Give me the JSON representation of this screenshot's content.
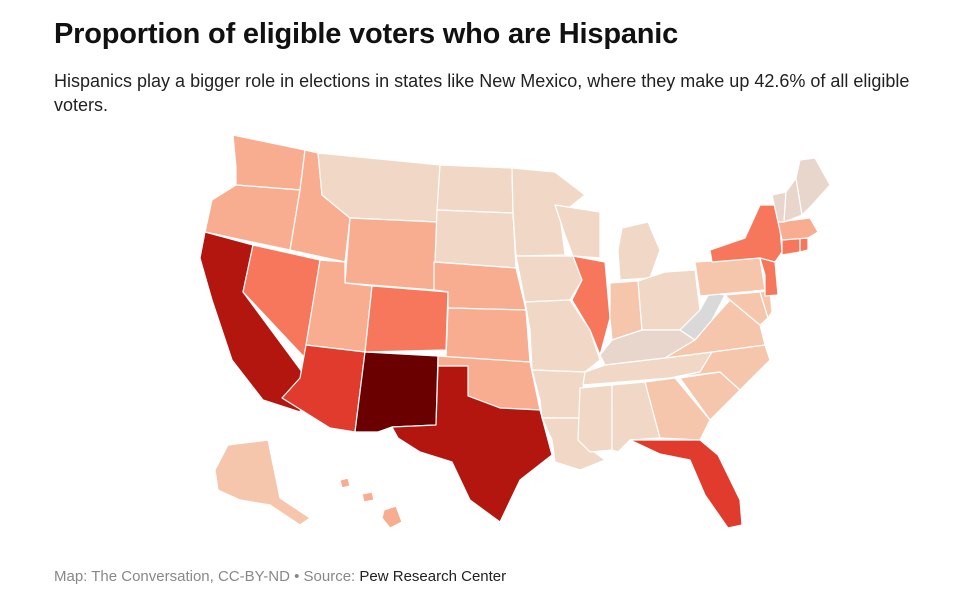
{
  "title": "Proportion of eligible voters who are Hispanic",
  "subtitle": "Hispanics play a bigger role in elections in states like New Mexico, where they make up 42.6% of all eligible voters.",
  "footer": {
    "credit": "Map: The Conversation, CC-BY-ND",
    "separator": " • ",
    "source_label": "Source: ",
    "source_name": "Pew Research Center"
  },
  "colors": {
    "very_high": "#6b0000",
    "high": "#b3150f",
    "upper_mid": "#e03b2c",
    "mid": "#f7775c",
    "lower_mid": "#f9ad90",
    "low": "#f5c6ab",
    "very_low": "#f1d8c6",
    "minimal": "#e8d6cc",
    "lowest": "#d9d9d9"
  },
  "states": [
    {
      "id": "NM",
      "level": "very_high"
    },
    {
      "id": "CA",
      "level": "high"
    },
    {
      "id": "TX",
      "level": "high"
    },
    {
      "id": "AZ",
      "level": "upper_mid"
    },
    {
      "id": "FL",
      "level": "upper_mid"
    },
    {
      "id": "NV",
      "level": "mid"
    },
    {
      "id": "CO",
      "level": "mid"
    },
    {
      "id": "NJ",
      "level": "mid"
    },
    {
      "id": "NY",
      "level": "mid"
    },
    {
      "id": "IL",
      "level": "mid"
    },
    {
      "id": "CT",
      "level": "mid"
    },
    {
      "id": "RI",
      "level": "mid"
    },
    {
      "id": "MA",
      "level": "lower_mid"
    },
    {
      "id": "WA",
      "level": "lower_mid"
    },
    {
      "id": "OR",
      "level": "lower_mid"
    },
    {
      "id": "ID",
      "level": "lower_mid"
    },
    {
      "id": "UT",
      "level": "lower_mid"
    },
    {
      "id": "WY",
      "level": "lower_mid"
    },
    {
      "id": "KS",
      "level": "lower_mid"
    },
    {
      "id": "NE",
      "level": "lower_mid"
    },
    {
      "id": "OK",
      "level": "lower_mid"
    },
    {
      "id": "HI",
      "level": "lower_mid"
    },
    {
      "id": "AK",
      "level": "low"
    },
    {
      "id": "GA",
      "level": "low"
    },
    {
      "id": "VA",
      "level": "low"
    },
    {
      "id": "MD",
      "level": "low"
    },
    {
      "id": "DE",
      "level": "low"
    },
    {
      "id": "NC",
      "level": "low"
    },
    {
      "id": "PA",
      "level": "low"
    },
    {
      "id": "SC",
      "level": "low"
    },
    {
      "id": "IN",
      "level": "low"
    },
    {
      "id": "MI",
      "level": "very_low"
    },
    {
      "id": "WI",
      "level": "very_low"
    },
    {
      "id": "MN",
      "level": "very_low"
    },
    {
      "id": "IA",
      "level": "very_low"
    },
    {
      "id": "AR",
      "level": "very_low"
    },
    {
      "id": "LA",
      "level": "very_low"
    },
    {
      "id": "OH",
      "level": "very_low"
    },
    {
      "id": "TN",
      "level": "very_low"
    },
    {
      "id": "MO",
      "level": "very_low"
    },
    {
      "id": "MT",
      "level": "very_low"
    },
    {
      "id": "ND",
      "level": "very_low"
    },
    {
      "id": "SD",
      "level": "very_low"
    },
    {
      "id": "AL",
      "level": "very_low"
    },
    {
      "id": "MS",
      "level": "very_low"
    },
    {
      "id": "KY",
      "level": "minimal"
    },
    {
      "id": "ME",
      "level": "minimal"
    },
    {
      "id": "NH",
      "level": "minimal"
    },
    {
      "id": "VT",
      "level": "minimal"
    },
    {
      "id": "WV",
      "level": "lowest"
    }
  ]
}
